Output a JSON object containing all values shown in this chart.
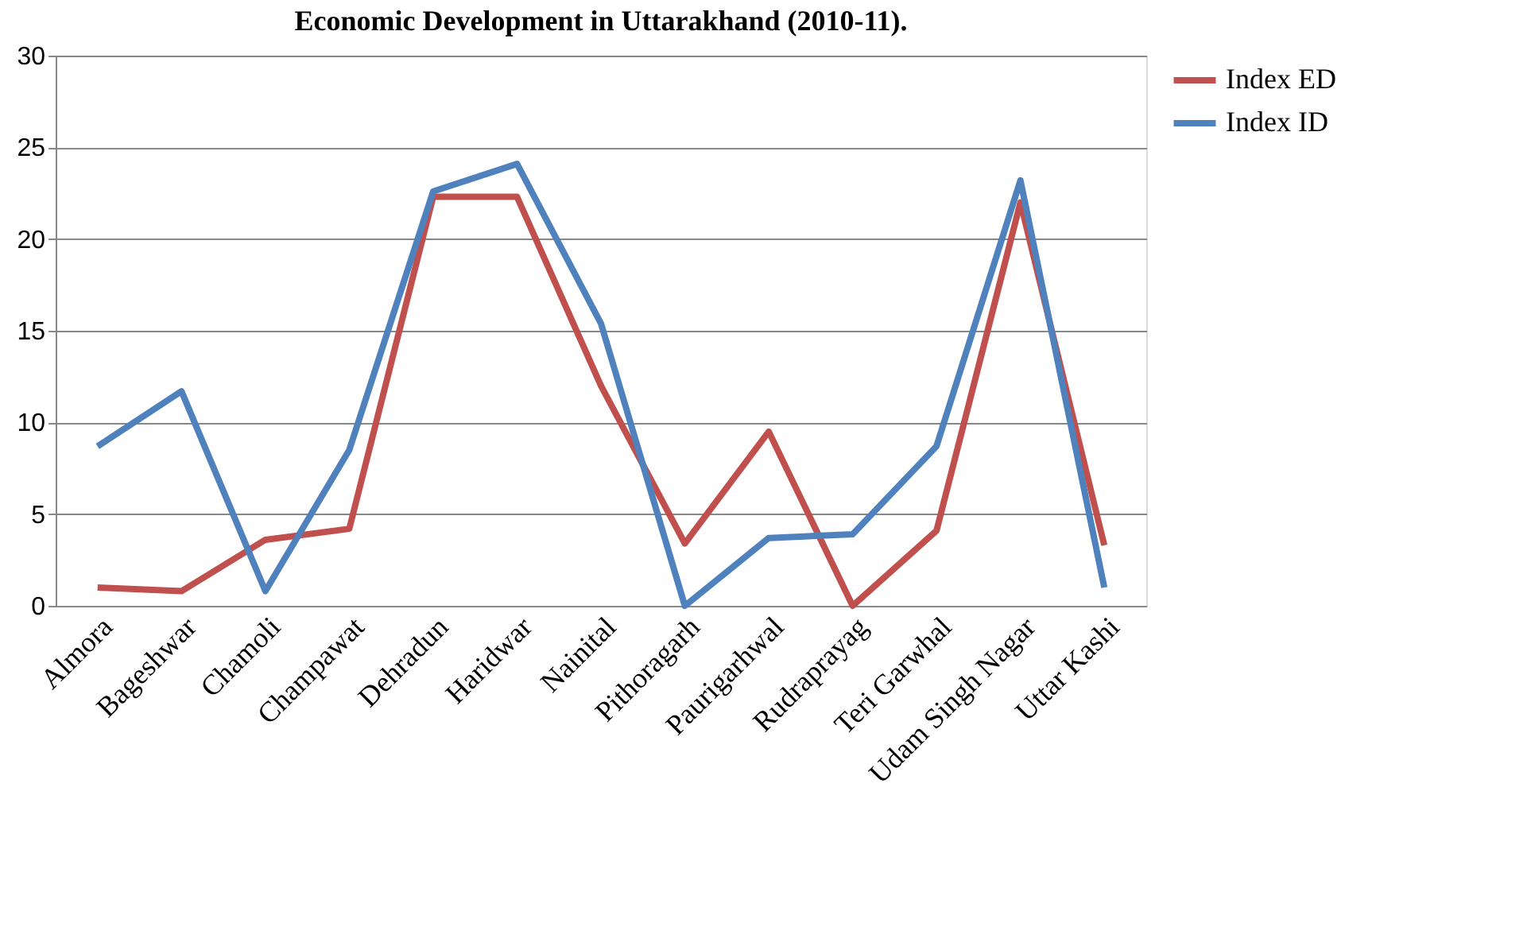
{
  "chart_data": {
    "type": "line",
    "title": "Economic Development in Uttarakhand (2010-11).",
    "categories": [
      "Almora",
      "Bageshwar",
      "Chamoli",
      "Champawat",
      "Dehradun",
      "Haridwar",
      "Nainital",
      "Pithoragarh",
      "Paurigarhwal",
      "Rudraprayag",
      "Teri Garwhal",
      "Udam Singh Nagar",
      "Uttar Kashi"
    ],
    "series": [
      {
        "name": "Index  ED",
        "color": "#c0504d",
        "values": [
          1.0,
          0.8,
          3.6,
          4.2,
          22.3,
          22.3,
          12.0,
          3.4,
          9.5,
          0.0,
          4.1,
          22.0,
          3.3
        ]
      },
      {
        "name": "Index ID",
        "color": "#4f81bd",
        "values": [
          8.7,
          11.7,
          0.8,
          8.5,
          22.6,
          24.1,
          15.4,
          0.0,
          3.7,
          3.9,
          8.7,
          23.2,
          1.0
        ]
      }
    ],
    "ylim": [
      0,
      30
    ],
    "yticks": [
      0,
      5,
      10,
      15,
      20,
      25,
      30
    ],
    "grid": "y",
    "legend": "right",
    "marker": "none",
    "line_style": "solid"
  }
}
